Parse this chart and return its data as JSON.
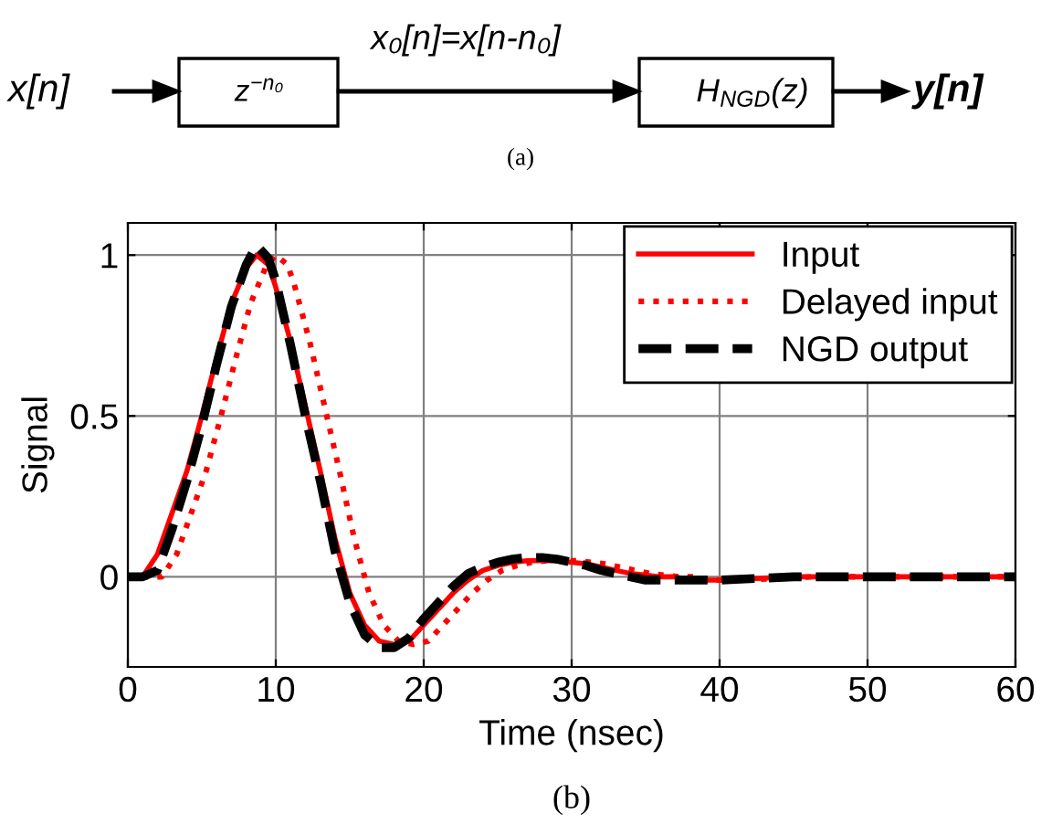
{
  "chart_data": [
    {
      "type": "other",
      "annotations": [
        "x[n]",
        "z$^{−n₀}$",
        "x₀[n]=x[n-n₀]",
        "H$_{NGD}$(z)",
        "y[n]",
        "(a)"
      ]
    },
    {
      "type": "line",
      "xlabel": "Time (nsec)",
      "ylabel": "Signal",
      "annotations": [
        "(b)"
      ],
      "xlim": [
        0,
        60
      ],
      "ylim": [
        -0.28,
        1.1
      ],
      "xticks": [
        0,
        10,
        20,
        30,
        40,
        50,
        60
      ],
      "yticks": [
        0,
        0.5,
        1
      ],
      "grid": true,
      "legend": "top right",
      "series": [
        {
          "name": "Input",
          "color": "#ff0000",
          "line_style": "solid",
          "x": [
            0,
            1,
            2,
            3,
            4,
            5,
            6,
            7,
            8,
            8.7,
            9.5,
            10,
            11,
            12,
            13,
            14,
            15,
            16,
            17,
            18,
            19,
            20,
            21,
            22,
            23,
            24,
            25,
            26,
            27,
            28,
            29,
            30,
            31,
            32,
            33,
            34,
            35,
            36,
            37,
            38,
            40,
            45,
            50,
            55,
            60
          ],
          "values": [
            0,
            0,
            0.07,
            0.2,
            0.33,
            0.5,
            0.68,
            0.85,
            0.96,
            1.0,
            0.97,
            0.9,
            0.73,
            0.53,
            0.33,
            0.12,
            -0.05,
            -0.15,
            -0.2,
            -0.21,
            -0.2,
            -0.15,
            -0.1,
            -0.05,
            -0.01,
            0.02,
            0.035,
            0.045,
            0.05,
            0.05,
            0.05,
            0.045,
            0.04,
            0.03,
            0.02,
            0.01,
            0.005,
            0,
            0,
            -0.01,
            -0.01,
            0,
            0,
            0,
            0
          ]
        },
        {
          "name": "Delayed input",
          "color": "#ff0000",
          "line_style": "dotted",
          "x": [
            0,
            2.3,
            3.3,
            4.3,
            5.3,
            6.3,
            7.3,
            8.3,
            9.3,
            10,
            10.8,
            11.3,
            12.3,
            13.3,
            14.3,
            15.3,
            16.3,
            17.3,
            18.3,
            19.3,
            20.3,
            21.3,
            22.3,
            23.3,
            24.3,
            25.3,
            26.3,
            27.3,
            28.3,
            29.3,
            30.3,
            31.3,
            32.3,
            33.3,
            34.3,
            35.3,
            36.3,
            37.3,
            38.3,
            39.3,
            41.3,
            46.3,
            51.3,
            56.3,
            60
          ],
          "values": [
            0,
            0,
            0.07,
            0.2,
            0.33,
            0.5,
            0.68,
            0.85,
            0.96,
            1.0,
            0.97,
            0.9,
            0.73,
            0.53,
            0.33,
            0.12,
            -0.05,
            -0.15,
            -0.2,
            -0.21,
            -0.2,
            -0.15,
            -0.1,
            -0.05,
            -0.01,
            0.02,
            0.035,
            0.045,
            0.05,
            0.05,
            0.05,
            0.045,
            0.04,
            0.03,
            0.02,
            0.01,
            0.005,
            0,
            0,
            -0.01,
            -0.01,
            0,
            0,
            0,
            0
          ]
        },
        {
          "name": "NGD output",
          "color": "#000000",
          "line_style": "dashed",
          "x": [
            0,
            1,
            2,
            3,
            4,
            5,
            6,
            7,
            8,
            8.7,
            9.5,
            10,
            11,
            12,
            13,
            14,
            15,
            16,
            17,
            18,
            19,
            20,
            21,
            22,
            23,
            24,
            25,
            26,
            27,
            28,
            29,
            30,
            31,
            32,
            33,
            34,
            35,
            36,
            37,
            38,
            40,
            45,
            50,
            55,
            60
          ],
          "values": [
            0,
            0,
            0.02,
            0.15,
            0.3,
            0.47,
            0.66,
            0.84,
            0.97,
            1.03,
            0.99,
            0.92,
            0.72,
            0.5,
            0.3,
            0.08,
            -0.08,
            -0.18,
            -0.22,
            -0.22,
            -0.19,
            -0.13,
            -0.08,
            -0.03,
            0.01,
            0.03,
            0.045,
            0.055,
            0.06,
            0.06,
            0.055,
            0.045,
            0.035,
            0.02,
            0.01,
            0,
            -0.01,
            -0.01,
            -0.01,
            -0.01,
            -0.01,
            0,
            0,
            0,
            0
          ]
        }
      ]
    }
  ]
}
